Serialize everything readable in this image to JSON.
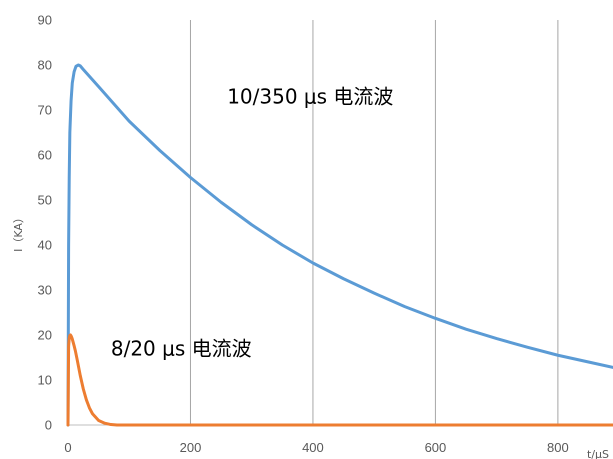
{
  "chart_data": {
    "type": "line",
    "title": "",
    "xlabel": "t/μS",
    "ylabel": "I（KA）",
    "xlim": [
      0,
      890
    ],
    "ylim": [
      0,
      90
    ],
    "x_ticks": [
      0,
      200,
      400,
      600,
      800
    ],
    "y_ticks": [
      0,
      10,
      20,
      30,
      40,
      50,
      60,
      70,
      80,
      90
    ],
    "x_tick_labels": [
      "0",
      "200",
      "400",
      "600",
      "800"
    ],
    "y_tick_labels": [
      "0",
      "10",
      "20",
      "30",
      "40",
      "50",
      "60",
      "70",
      "80",
      "90"
    ],
    "grid": "vertical",
    "legend": "none",
    "series": [
      {
        "name": "10/350 μs  电流波",
        "color": "#5B9BD5",
        "x": [
          0,
          1,
          2,
          3,
          5,
          7,
          10,
          13,
          17,
          20,
          25,
          50,
          100,
          150,
          200,
          250,
          300,
          350,
          400,
          450,
          500,
          550,
          600,
          650,
          700,
          750,
          800,
          850,
          890
        ],
        "y": [
          0,
          40,
          55,
          65,
          72,
          76,
          78.5,
          79.7,
          80,
          79.8,
          79,
          75.2,
          67.5,
          61,
          55,
          49.5,
          44.5,
          40,
          36,
          32.5,
          29.3,
          26.3,
          23.7,
          21.3,
          19.2,
          17.3,
          15.5,
          14,
          12.8
        ]
      },
      {
        "name": "8/20 μs 电流波",
        "color": "#ED7D31",
        "x": [
          0,
          1,
          2,
          3,
          4,
          5,
          6,
          7,
          8,
          10,
          12,
          15,
          20,
          25,
          30,
          35,
          40,
          50,
          60,
          70,
          80,
          100,
          200,
          400,
          600,
          800,
          890
        ],
        "y": [
          0,
          17.5,
          19.3,
          19.9,
          20,
          19.8,
          19.5,
          19.1,
          18.6,
          17.6,
          16.5,
          14.5,
          11,
          8,
          5.6,
          3.8,
          2.5,
          1,
          0.4,
          0.1,
          0,
          0,
          0,
          0,
          0,
          0,
          0
        ]
      }
    ],
    "annotations": [
      {
        "text": "10/350 μs  电流波",
        "x": 260,
        "y": 71.5
      },
      {
        "text": "8/20 μs 电流波",
        "x": 70,
        "y": 15.5
      }
    ]
  }
}
